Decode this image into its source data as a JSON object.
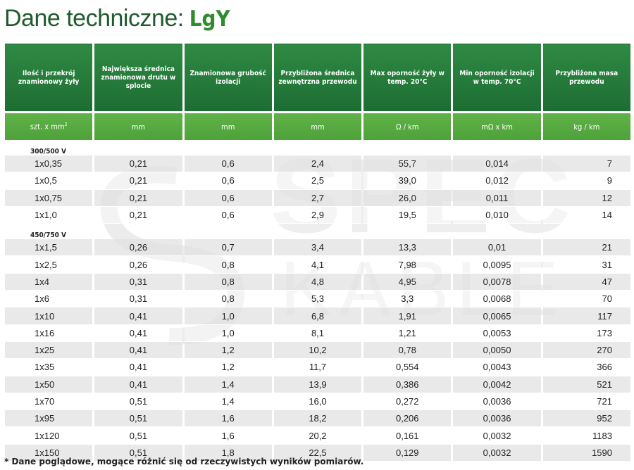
{
  "title": {
    "prefix": "Dane techniczne:",
    "product": "LgY"
  },
  "columns": [
    "Ilość i przekrój znamionowy żyły",
    "Największa średnica znamionowa drutu w splocie",
    "Znamionowa grubość izolacji",
    "Przybliżona średnica zewnętrzna przewodu",
    "Max oporność żyły w temp. 20°C",
    "Min oporność izolacji w temp. 70°C",
    "Przybliżona masa przewodu"
  ],
  "units": [
    "szt. x mm",
    "mm",
    "mm",
    "mm",
    "Ω / km",
    "mΩ x km",
    "kg / km"
  ],
  "unit_superscript": "2",
  "sections": [
    {
      "label": "300/500 V",
      "rows": [
        [
          "1x0,35",
          "0,21",
          "0,6",
          "2,4",
          "55,7",
          "0,014",
          "7"
        ],
        [
          "1x0,5",
          "0,21",
          "0,6",
          "2,5",
          "39,0",
          "0,012",
          "9"
        ],
        [
          "1x0,75",
          "0,21",
          "0,6",
          "2,7",
          "26,0",
          "0,011",
          "12"
        ],
        [
          "1x1,0",
          "0,21",
          "0,6",
          "2,9",
          "19,5",
          "0,010",
          "14"
        ]
      ]
    },
    {
      "label": "450/750 V",
      "rows": [
        [
          "1x1,5",
          "0,26",
          "0,7",
          "3,4",
          "13,3",
          "0,01",
          "21"
        ],
        [
          "1x2,5",
          "0,26",
          "0,8",
          "4,1",
          "7,98",
          "0,0095",
          "31"
        ],
        [
          "1x4",
          "0,31",
          "0,8",
          "4,8",
          "4,95",
          "0,0078",
          "47"
        ],
        [
          "1x6",
          "0,31",
          "0,8",
          "5,3",
          "3,3",
          "0,0068",
          "70"
        ],
        [
          "1x10",
          "0,41",
          "1,0",
          "6,8",
          "1,91",
          "0,0065",
          "117"
        ],
        [
          "1x16",
          "0,41",
          "1,0",
          "8,1",
          "1,21",
          "0,0053",
          "173"
        ],
        [
          "1x25",
          "0,41",
          "1,2",
          "10,2",
          "0,78",
          "0,0050",
          "270"
        ],
        [
          "1x35",
          "0,41",
          "1,2",
          "11,7",
          "0,554",
          "0,0043",
          "366"
        ],
        [
          "1x50",
          "0,41",
          "1,4",
          "13,9",
          "0,386",
          "0,0042",
          "521"
        ],
        [
          "1x70",
          "0,51",
          "1,4",
          "16,0",
          "0,272",
          "0,0036",
          "721"
        ],
        [
          "1x95",
          "0,51",
          "1,6",
          "18,2",
          "0,206",
          "0,0036",
          "952"
        ],
        [
          "1x120",
          "0,51",
          "1,6",
          "20,2",
          "0,161",
          "0,0032",
          "1183"
        ],
        [
          "1x150",
          "0,51",
          "1,8",
          "22,5",
          "0,129",
          "0,0032",
          "1590"
        ]
      ]
    }
  ],
  "watermark": {
    "line1": "SPEC",
    "line2": "KABLE",
    "color": "#d9d9d9"
  },
  "footnote": "* Dane poglądowe, mogące różnić się od rzeczywistych wyników pomiarów.",
  "colors": {
    "header_dark": "#1d6d33",
    "header_light": "#4ea23a",
    "title": "#1f5a2e"
  }
}
